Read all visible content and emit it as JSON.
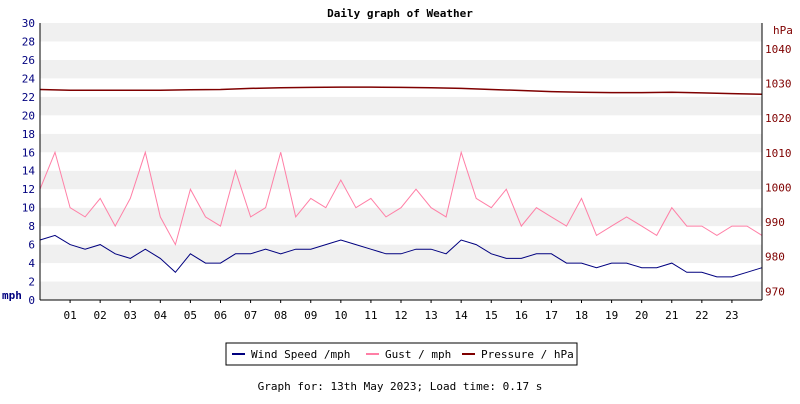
{
  "chart_data": {
    "type": "line",
    "title": "Daily graph of Weather",
    "left_axis": {
      "unit_label": "mph",
      "range": [
        0,
        30
      ],
      "ticks": [
        0,
        2,
        4,
        6,
        8,
        10,
        12,
        14,
        16,
        18,
        20,
        22,
        24,
        26,
        28,
        30
      ],
      "color": "#00007f"
    },
    "right_axis": {
      "unit_label": "hPa",
      "range": [
        967.5,
        1047.5
      ],
      "ticks": [
        970,
        980,
        990,
        1000,
        1010,
        1020,
        1030,
        1040
      ],
      "color": "#7f0000"
    },
    "x_axis": {
      "range": [
        0,
        24
      ],
      "tick_labels": [
        "01",
        "02",
        "03",
        "04",
        "05",
        "06",
        "07",
        "08",
        "09",
        "10",
        "11",
        "12",
        "13",
        "14",
        "15",
        "16",
        "17",
        "18",
        "19",
        "20",
        "21",
        "22",
        "23"
      ]
    },
    "grid": "horizontal-bands",
    "legend_position": "bottom-center",
    "series": [
      {
        "name": "Wind Speed /mph",
        "axis": "left",
        "color": "#00007f",
        "x": [
          0,
          0.5,
          1,
          1.5,
          2,
          2.5,
          3,
          3.5,
          4,
          4.5,
          5,
          5.5,
          6,
          6.5,
          7,
          7.5,
          8,
          8.5,
          9,
          9.5,
          10,
          10.5,
          11,
          11.5,
          12,
          12.5,
          13,
          13.5,
          14,
          14.5,
          15,
          15.5,
          16,
          16.5,
          17,
          17.5,
          18,
          18.5,
          19,
          19.5,
          20,
          20.5,
          21,
          21.5,
          22,
          22.5,
          23,
          23.5,
          24
        ],
        "values": [
          6.5,
          7,
          6,
          5.5,
          6,
          5,
          4.5,
          5.5,
          4.5,
          3,
          5,
          4,
          4,
          5,
          5,
          5.5,
          5,
          5.5,
          5.5,
          6,
          6.5,
          6,
          5.5,
          5,
          5,
          5.5,
          5.5,
          5,
          6.5,
          6,
          5,
          4.5,
          4.5,
          5,
          5,
          4,
          4,
          3.5,
          4,
          4,
          3.5,
          3.5,
          4,
          3,
          3,
          2.5,
          2.5,
          3,
          3.5
        ]
      },
      {
        "name": "Gust / mph",
        "axis": "left",
        "color": "#ff7fa6",
        "x": [
          0,
          0.5,
          1,
          1.5,
          2,
          2.5,
          3,
          3.5,
          4,
          4.5,
          5,
          5.5,
          6,
          6.5,
          7,
          7.5,
          8,
          8.5,
          9,
          9.5,
          10,
          10.5,
          11,
          11.5,
          12,
          12.5,
          13,
          13.5,
          14,
          14.5,
          15,
          15.5,
          16,
          16.5,
          17,
          17.5,
          18,
          18.5,
          19,
          19.5,
          20,
          20.5,
          21,
          21.5,
          22,
          22.5,
          23,
          23.5,
          24
        ],
        "values": [
          12,
          16,
          10,
          9,
          11,
          8,
          11,
          16,
          9,
          6,
          12,
          9,
          8,
          14,
          9,
          10,
          16,
          9,
          11,
          10,
          13,
          10,
          11,
          9,
          10,
          12,
          10,
          9,
          16,
          11,
          10,
          12,
          8,
          10,
          9,
          8,
          11,
          7,
          8,
          9,
          8,
          7,
          10,
          8,
          8,
          7,
          8,
          8,
          7
        ]
      },
      {
        "name": "Pressure / hPa",
        "axis": "right",
        "color": "#7f0000",
        "x": [
          0,
          1,
          2,
          3,
          4,
          5,
          6,
          7,
          8,
          9,
          10,
          11,
          12,
          13,
          14,
          15,
          16,
          17,
          18,
          19,
          20,
          21,
          22,
          23,
          24
        ],
        "values": [
          1028.3,
          1028.1,
          1028.1,
          1028.1,
          1028.1,
          1028.2,
          1028.3,
          1028.6,
          1028.8,
          1028.9,
          1029.0,
          1029.0,
          1028.9,
          1028.8,
          1028.6,
          1028.3,
          1028.0,
          1027.7,
          1027.5,
          1027.4,
          1027.4,
          1027.5,
          1027.3,
          1027.1,
          1026.9
        ]
      }
    ]
  },
  "footer": "Graph for: 13th May 2023; Load time: 0.17 s"
}
